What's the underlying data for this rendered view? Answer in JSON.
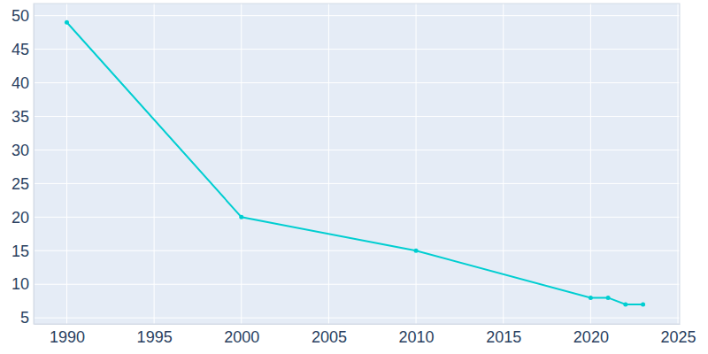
{
  "chart_data": {
    "type": "line",
    "x": [
      1990,
      2000,
      2010,
      2020,
      2021,
      2022,
      2023
    ],
    "values": [
      49,
      20,
      15,
      8,
      8,
      7,
      7
    ],
    "color": "#00ced1",
    "marker": "circle",
    "xlim": [
      1988.1,
      2025.1
    ],
    "ylim": [
      4.1,
      51.8
    ],
    "xticks": [
      1990,
      1995,
      2000,
      2005,
      2010,
      2015,
      2020,
      2025
    ],
    "yticks": [
      5,
      10,
      15,
      20,
      25,
      30,
      35,
      40,
      45,
      50
    ],
    "grid": true
  }
}
